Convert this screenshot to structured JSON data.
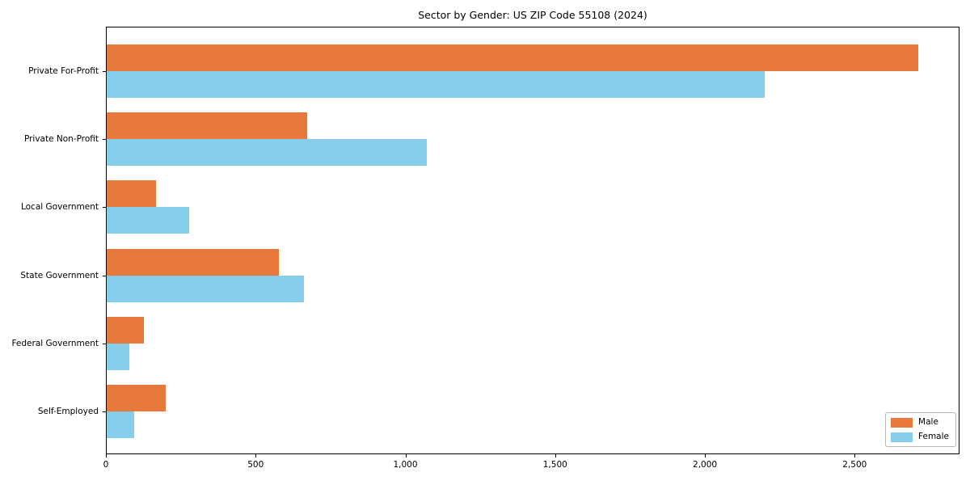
{
  "chart_data": {
    "type": "bar",
    "orientation": "horizontal",
    "title": "Sector by Gender: US ZIP Code 55108 (2024)",
    "categories": [
      "Private For-Profit",
      "Private Non-Profit",
      "Local Government",
      "State Government",
      "Federal Government",
      "Self-Employed"
    ],
    "series": [
      {
        "name": "Male",
        "color": "#e8793d",
        "values": [
          2713,
          673,
          168,
          578,
          126,
          200
        ]
      },
      {
        "name": "Female",
        "color": "#87ceeb",
        "values": [
          2200,
          1072,
          278,
          662,
          77,
          94
        ]
      }
    ],
    "xticks": [
      0,
      500,
      1000,
      1500,
      2000,
      2500
    ],
    "xtick_labels": [
      "0",
      "500",
      "1,000",
      "1,500",
      "2,000",
      "2,500"
    ],
    "xlim": [
      0,
      2850
    ],
    "ylabel": "",
    "xlabel": "",
    "grid": false,
    "legend_position": "lower right",
    "background_color": "#ffffff",
    "spine_color": "#000000"
  }
}
